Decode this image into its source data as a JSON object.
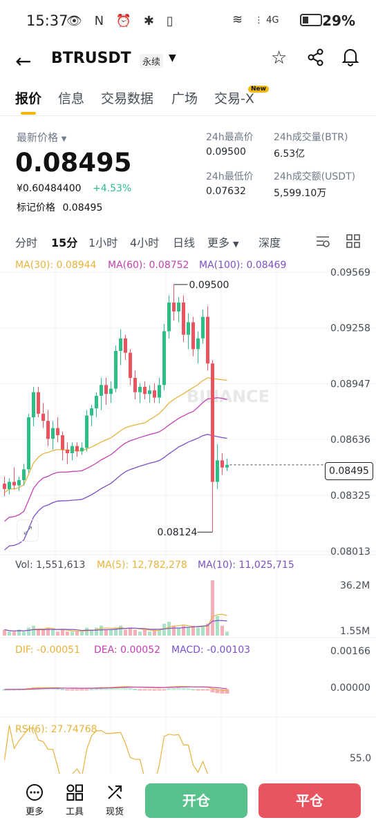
{
  "status_bar": {
    "time": "15:37",
    "left_icons": "👁 N ⏰ ✱ ▯",
    "signal_icons": "⋮ 4G",
    "battery": "29%"
  },
  "header": {
    "symbol": "BTRUSDT",
    "contract_type": "永续"
  },
  "tabs": [
    {
      "label": "报价",
      "active": true
    },
    {
      "label": "信息",
      "active": false
    },
    {
      "label": "交易数据",
      "active": false
    },
    {
      "label": "广场",
      "active": false
    },
    {
      "label": "交易-X",
      "active": false,
      "badge": "New"
    }
  ],
  "price_panel": {
    "latest_label": "最新价格",
    "last_price": "0.08495",
    "cny_price": "¥0.60484400",
    "change_pct": "+4.53%",
    "mark_label": "标记价格",
    "mark_price": "0.08495",
    "high_label": "24h最高价",
    "high_value": "0.09500",
    "low_label": "24h最低价",
    "low_value": "0.07632",
    "vol_btr_label": "24h成交量(BTR)",
    "vol_btr_value": "6.53亿",
    "vol_usdt_label": "24h成交额(USDT)",
    "vol_usdt_value": "5,599.10万"
  },
  "intervals": [
    {
      "label": "分时",
      "active": false
    },
    {
      "label": "15分",
      "active": true
    },
    {
      "label": "1小时",
      "active": false
    },
    {
      "label": "4小时",
      "active": false
    },
    {
      "label": "日线",
      "active": false
    },
    {
      "label": "更多",
      "active": false
    },
    {
      "label": "深度",
      "active": false
    }
  ],
  "indicators": {
    "ma30": "MA(30): 0.08944",
    "ma60": "MA(60): 0.08752",
    "ma100": "MA(100): 0.08469",
    "vol": "Vol: 1,551,613",
    "vol_ma5": "MA(5): 12,782,278",
    "vol_ma10": "MA(10): 11,025,715",
    "dif": "DIF: -0.00051",
    "dea": "DEA: 0.00052",
    "macd": "MACD: -0.00103",
    "rsi": "RSI(6): 27.74768"
  },
  "watermark": "BINANCE",
  "colors": {
    "up": "#2ebd85",
    "down": "#e8545f",
    "ma30": "#e8b23a",
    "ma60": "#c43fb3",
    "ma100": "#7b4fc9",
    "accent": "#f0b90b"
  },
  "chart_data": {
    "type": "candlestick",
    "interval": "15分",
    "price_axis_ticks": [
      "0.09569",
      "0.09258",
      "0.08947",
      "0.08636",
      "0.08325",
      "0.08013"
    ],
    "current_price_label": "0.08495",
    "high_marker": "0.09500",
    "low_marker": "0.08124",
    "volume_axis_ticks": [
      "36.2M",
      "1.55M"
    ],
    "macd_axis_ticks": [
      "0.00166",
      "0.00000"
    ],
    "rsi_axis_ticks": [
      "55.0"
    ],
    "candles": [
      {
        "o": 0.0839,
        "h": 0.0843,
        "l": 0.0832,
        "c": 0.0836
      },
      {
        "o": 0.0836,
        "h": 0.0842,
        "l": 0.0833,
        "c": 0.084
      },
      {
        "o": 0.084,
        "h": 0.0848,
        "l": 0.0836,
        "c": 0.0838
      },
      {
        "o": 0.0838,
        "h": 0.0843,
        "l": 0.0835,
        "c": 0.0841
      },
      {
        "o": 0.0841,
        "h": 0.085,
        "l": 0.0838,
        "c": 0.0847
      },
      {
        "o": 0.0847,
        "h": 0.0878,
        "l": 0.0845,
        "c": 0.0876
      },
      {
        "o": 0.0876,
        "h": 0.0893,
        "l": 0.0871,
        "c": 0.089
      },
      {
        "o": 0.089,
        "h": 0.0893,
        "l": 0.0876,
        "c": 0.0878
      },
      {
        "o": 0.0878,
        "h": 0.0884,
        "l": 0.087,
        "c": 0.0874
      },
      {
        "o": 0.0874,
        "h": 0.088,
        "l": 0.086,
        "c": 0.0864
      },
      {
        "o": 0.0864,
        "h": 0.0874,
        "l": 0.0858,
        "c": 0.087
      },
      {
        "o": 0.087,
        "h": 0.0876,
        "l": 0.0862,
        "c": 0.0866
      },
      {
        "o": 0.0866,
        "h": 0.0868,
        "l": 0.0852,
        "c": 0.0858
      },
      {
        "o": 0.0858,
        "h": 0.0862,
        "l": 0.085,
        "c": 0.0856
      },
      {
        "o": 0.0856,
        "h": 0.0862,
        "l": 0.0852,
        "c": 0.086
      },
      {
        "o": 0.086,
        "h": 0.0862,
        "l": 0.0854,
        "c": 0.0857
      },
      {
        "o": 0.0857,
        "h": 0.0862,
        "l": 0.0855,
        "c": 0.0859
      },
      {
        "o": 0.0859,
        "h": 0.088,
        "l": 0.0857,
        "c": 0.0877
      },
      {
        "o": 0.0877,
        "h": 0.0883,
        "l": 0.0871,
        "c": 0.0881
      },
      {
        "o": 0.0881,
        "h": 0.089,
        "l": 0.0876,
        "c": 0.0888
      },
      {
        "o": 0.0888,
        "h": 0.0898,
        "l": 0.088,
        "c": 0.0894
      },
      {
        "o": 0.0894,
        "h": 0.0898,
        "l": 0.0883,
        "c": 0.0889
      },
      {
        "o": 0.0889,
        "h": 0.0896,
        "l": 0.0884,
        "c": 0.0892
      },
      {
        "o": 0.0892,
        "h": 0.0916,
        "l": 0.089,
        "c": 0.0913
      },
      {
        "o": 0.0913,
        "h": 0.0925,
        "l": 0.0905,
        "c": 0.092
      },
      {
        "o": 0.092,
        "h": 0.0922,
        "l": 0.0908,
        "c": 0.0912
      },
      {
        "o": 0.0912,
        "h": 0.0914,
        "l": 0.0894,
        "c": 0.0898
      },
      {
        "o": 0.0898,
        "h": 0.0902,
        "l": 0.0886,
        "c": 0.089
      },
      {
        "o": 0.089,
        "h": 0.0895,
        "l": 0.0884,
        "c": 0.0893
      },
      {
        "o": 0.0893,
        "h": 0.0896,
        "l": 0.0886,
        "c": 0.0889
      },
      {
        "o": 0.0889,
        "h": 0.0894,
        "l": 0.0884,
        "c": 0.0891
      },
      {
        "o": 0.0891,
        "h": 0.0895,
        "l": 0.0884,
        "c": 0.0887
      },
      {
        "o": 0.0887,
        "h": 0.0898,
        "l": 0.0884,
        "c": 0.0894
      },
      {
        "o": 0.0894,
        "h": 0.0928,
        "l": 0.0891,
        "c": 0.0924
      },
      {
        "o": 0.0924,
        "h": 0.0944,
        "l": 0.092,
        "c": 0.094
      },
      {
        "o": 0.094,
        "h": 0.095,
        "l": 0.093,
        "c": 0.0935
      },
      {
        "o": 0.0935,
        "h": 0.0943,
        "l": 0.0929,
        "c": 0.094
      },
      {
        "o": 0.094,
        "h": 0.0944,
        "l": 0.0918,
        "c": 0.0922
      },
      {
        "o": 0.0922,
        "h": 0.0934,
        "l": 0.0914,
        "c": 0.0929
      },
      {
        "o": 0.0929,
        "h": 0.0932,
        "l": 0.091,
        "c": 0.0914
      },
      {
        "o": 0.0914,
        "h": 0.0924,
        "l": 0.0906,
        "c": 0.092
      },
      {
        "o": 0.092,
        "h": 0.0936,
        "l": 0.0917,
        "c": 0.0932
      },
      {
        "o": 0.0932,
        "h": 0.0938,
        "l": 0.0902,
        "c": 0.0906
      },
      {
        "o": 0.0906,
        "h": 0.0908,
        "l": 0.0812,
        "c": 0.084
      },
      {
        "o": 0.084,
        "h": 0.0861,
        "l": 0.0836,
        "c": 0.0852
      },
      {
        "o": 0.0852,
        "h": 0.0856,
        "l": 0.0844,
        "c": 0.0848
      },
      {
        "o": 0.0848,
        "h": 0.0853,
        "l": 0.0846,
        "c": 0.08495
      }
    ],
    "volume": [
      3,
      2,
      2,
      3,
      2,
      4,
      5,
      3,
      3,
      4,
      3,
      2,
      3,
      2,
      2,
      2,
      2,
      4,
      3,
      4,
      5,
      3,
      3,
      4,
      5,
      3,
      4,
      3,
      2,
      3,
      2,
      3,
      3,
      6,
      7,
      5,
      4,
      5,
      4,
      5,
      4,
      5,
      6,
      28,
      10,
      5,
      2
    ]
  },
  "bottom_bar": {
    "more": "更多",
    "tools": "工具",
    "spot": "现货",
    "open": "开仓",
    "close": "平仓"
  }
}
